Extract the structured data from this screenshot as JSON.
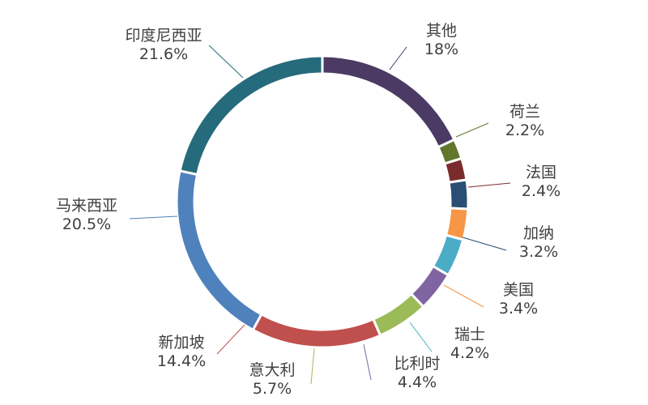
{
  "chart_data": {
    "type": "pie",
    "variant": "donut",
    "title": "",
    "slices": [
      {
        "label": "其他",
        "pct_label": "18%",
        "value": 18.0,
        "color": "#4B3A63"
      },
      {
        "label": "荷兰",
        "pct_label": "2.2%",
        "value": 2.2,
        "color": "#62762E"
      },
      {
        "label": "法国",
        "pct_label": "2.4%",
        "value": 2.4,
        "color": "#7A2C2C"
      },
      {
        "label": "加纳",
        "pct_label": "3.2%",
        "value": 3.2,
        "color": "#2B4E74"
      },
      {
        "label": "美国",
        "pct_label": "3.4%",
        "value": 3.4,
        "color": "#F79646"
      },
      {
        "label": "瑞士",
        "pct_label": "4.2%",
        "value": 4.2,
        "color": "#4BACC6"
      },
      {
        "label": "比利时",
        "pct_label": "4.4%",
        "value": 4.4,
        "color": "#8064A2"
      },
      {
        "label": "意大利",
        "pct_label": "5.7%",
        "value": 5.7,
        "color": "#9BBB59"
      },
      {
        "label": "新加坡",
        "pct_label": "14.4%",
        "value": 14.4,
        "color": "#C0504D"
      },
      {
        "label": "马来西亚",
        "pct_label": "20.5%",
        "value": 20.5,
        "color": "#4F81BD"
      },
      {
        "label": "印度尼西亚",
        "pct_label": "21.6%",
        "value": 21.6,
        "color": "#256B7B"
      }
    ],
    "legend": "none"
  }
}
